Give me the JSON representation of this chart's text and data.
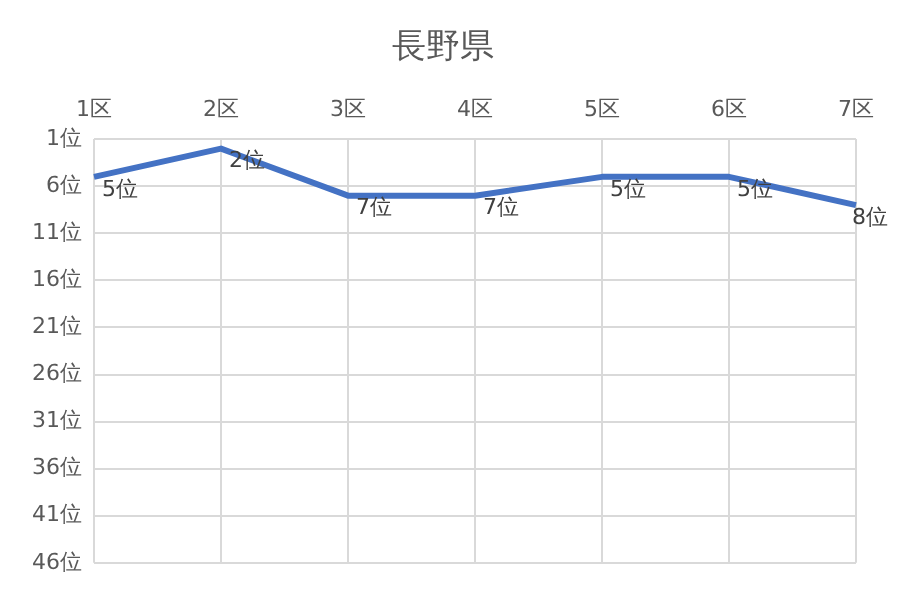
{
  "chart_data": {
    "type": "line",
    "title": "長野県",
    "categories": [
      "1区",
      "2区",
      "3区",
      "4区",
      "5区",
      "6区",
      "7区"
    ],
    "series": [
      {
        "color": "#4472c4",
        "values": [
          5,
          2,
          7,
          7,
          5,
          5,
          8
        ]
      }
    ],
    "value_labels": [
      "5位",
      "2位",
      "7位",
      "7位",
      "5位",
      "5位",
      "8位"
    ],
    "ylim": [
      46,
      1
    ],
    "yticks": [
      {
        "value": 1,
        "label": "1位"
      },
      {
        "value": 6,
        "label": "6位"
      },
      {
        "value": 11,
        "label": "11位"
      },
      {
        "value": 16,
        "label": "16位"
      },
      {
        "value": 21,
        "label": "21位"
      },
      {
        "value": 26,
        "label": "26位"
      },
      {
        "value": 31,
        "label": "31位"
      },
      {
        "value": 36,
        "label": "36位"
      },
      {
        "value": 41,
        "label": "41位"
      },
      {
        "value": 46,
        "label": "46位"
      }
    ],
    "grid": true,
    "marker": "none",
    "line_style": "solid",
    "legend": false
  }
}
